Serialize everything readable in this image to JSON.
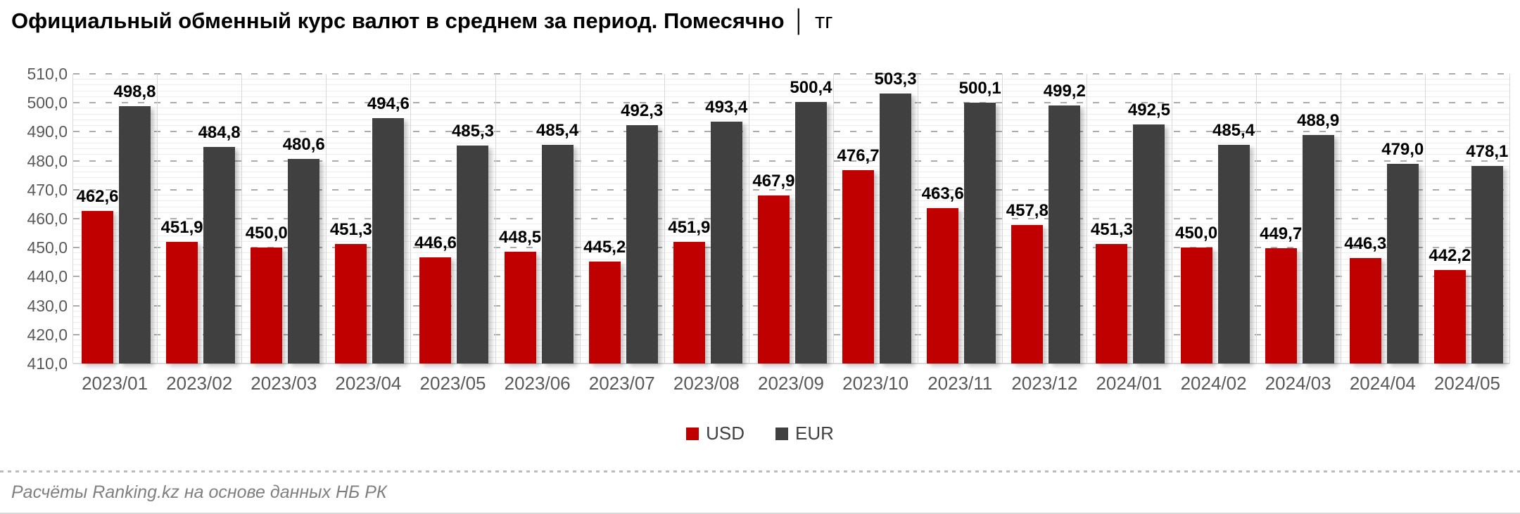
{
  "title": {
    "main": "Официальный обменный курс валют в среднем за период. Помесячно",
    "separator": "│",
    "unit": "тг"
  },
  "footer": {
    "source": "Расчёты Ranking.kz на основе данных НБ РК"
  },
  "chart_data": {
    "type": "bar",
    "title": "Официальный обменный курс валют в среднем за период. Помесячно │ тг",
    "categories": [
      "2023/01",
      "2023/02",
      "2023/03",
      "2023/04",
      "2023/05",
      "2023/06",
      "2023/07",
      "2023/08",
      "2023/09",
      "2023/10",
      "2023/11",
      "2023/12",
      "2024/01",
      "2024/02",
      "2024/03",
      "2024/04",
      "2024/05"
    ],
    "series": [
      {
        "name": "USD",
        "color": "#c00000",
        "values": [
          462.6,
          451.9,
          450.0,
          451.3,
          446.6,
          448.5,
          445.2,
          451.9,
          467.9,
          476.7,
          463.6,
          457.8,
          451.3,
          450.0,
          449.7,
          446.3,
          442.2
        ]
      },
      {
        "name": "EUR",
        "color": "#404040",
        "values": [
          498.8,
          484.8,
          480.6,
          494.6,
          485.3,
          485.4,
          492.3,
          493.4,
          500.4,
          503.3,
          500.1,
          499.2,
          492.5,
          485.4,
          488.9,
          479.0,
          478.1
        ]
      }
    ],
    "ylim": [
      410,
      510
    ],
    "y_tick_step": 10,
    "y_minor_step": 2,
    "decimal_separator": ",",
    "data_labels": true,
    "grid": true,
    "legend_position": "bottom",
    "colors": {
      "axis_text": "#595959",
      "major_grid": "#ababab",
      "minor_grid": "#ededed",
      "separator": "#d9d9d9",
      "label_text": "#000000"
    }
  }
}
